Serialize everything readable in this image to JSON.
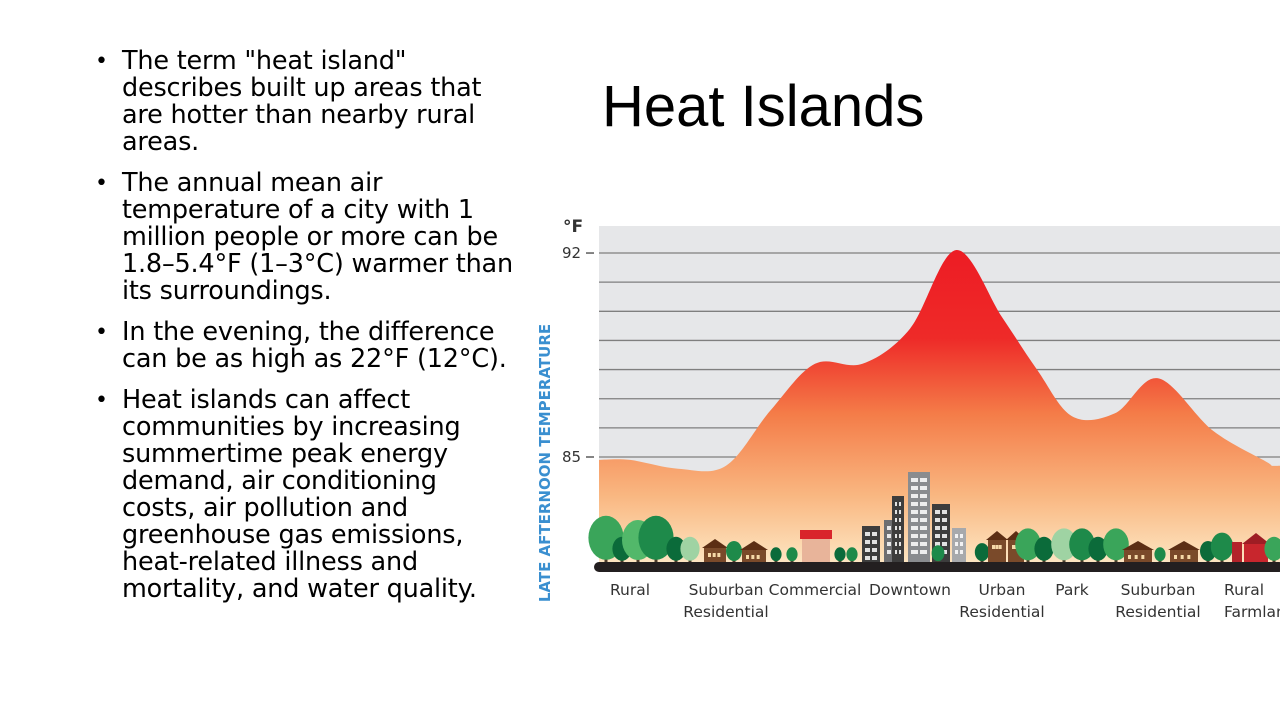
{
  "slide": {
    "title": "Heat Islands",
    "bullets": [
      "The term \"heat island\" describes built up areas that are hotter than nearby rural areas.",
      "The annual mean air temperature of a city with 1 million people or more can be 1.8–5.4°F (1–3°C) warmer than its surroundings.",
      " In the evening, the difference can be as high as 22°F (12°C).",
      "Heat islands can affect communities by increasing summertime peak energy demand, air conditioning costs, air pollution and greenhouse gas emissions, heat-related illness and mortality, and water quality."
    ]
  },
  "chart_data": {
    "type": "area",
    "unit": "°F",
    "ylabel": "LATE AFTERNOON TEMPERATURE",
    "yticks": [
      92,
      85
    ],
    "grid": true,
    "categories": [
      [
        "Rural"
      ],
      [
        "Suburban",
        "Residential"
      ],
      [
        "Commercial"
      ],
      [
        "Downtown"
      ],
      [
        "Urban",
        "Residential"
      ],
      [
        "Park"
      ],
      [
        "Suburban",
        "Residential"
      ],
      [
        "Rural",
        "Farmland"
      ]
    ],
    "curve": {
      "x": [
        0,
        0.5,
        1,
        1.5,
        2,
        2.5,
        3,
        3.5,
        4,
        4.5,
        5,
        5.5,
        6,
        6.5,
        7,
        7.5
      ],
      "y": [
        84.9,
        84.6,
        84.7,
        86.6,
        88.2,
        88.2,
        89.4,
        92.1,
        89.8,
        88.0,
        86.4,
        86.5,
        87.7,
        85.9,
        84.8,
        84.7
      ]
    },
    "colors": {
      "hot": "#ed1c24",
      "warm": "#f58a4b",
      "cool": "#fde7c4",
      "plot_bg": "#e6e7e9",
      "grid": "#7f7f7f",
      "ylabel": "#3a8fd0"
    },
    "skyline_icons": [
      "tree-icon",
      "house-icon",
      "barn-icon",
      "building-icon",
      "commercial-building-icon"
    ]
  }
}
